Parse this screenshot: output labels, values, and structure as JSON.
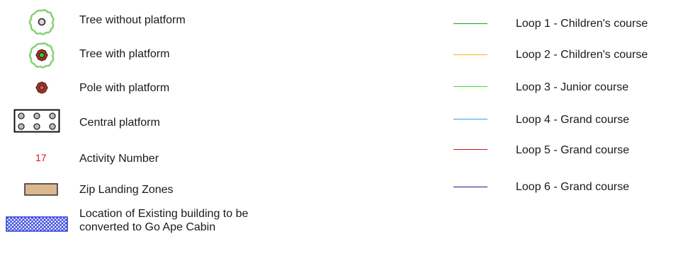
{
  "left_legend": [
    {
      "symbol": "tree-without-platform-icon",
      "label": "Tree without platform"
    },
    {
      "symbol": "tree-with-platform-icon",
      "label": "Tree with platform"
    },
    {
      "symbol": "pole-with-platform-icon",
      "label": "Pole with platform"
    },
    {
      "symbol": "central-platform-icon",
      "label": "Central platform"
    },
    {
      "symbol": "activity-number",
      "sample": "17",
      "label": "Activity Number"
    },
    {
      "symbol": "zip-landing-zone-icon",
      "label": "Zip Landing Zones"
    },
    {
      "symbol": "existing-building-icon",
      "label": "Location of Existing building to be converted to Go Ape Cabin"
    }
  ],
  "right_legend": [
    {
      "label": "Loop 1 - Children's course",
      "color": "#1aa01a"
    },
    {
      "label": "Loop 2 - Children's course",
      "color": "#ffb020"
    },
    {
      "label": "Loop 3 - Junior course",
      "color": "#33dd33"
    },
    {
      "label": "Loop 4 - Grand course",
      "color": "#3399ee"
    },
    {
      "label": "Loop 5 - Grand course",
      "color": "#dd1111"
    },
    {
      "label": "Loop 6 - Grand course",
      "color": "#1a1a80"
    }
  ],
  "colors": {
    "tree_canopy": "#b6f0a4",
    "tree_canopy_stroke": "#88d077",
    "pole_fill": "#a0332a",
    "activity_number": "#dd1111",
    "zip_zone_fill": "#dcb88e",
    "building_fill": "#3344dd"
  }
}
